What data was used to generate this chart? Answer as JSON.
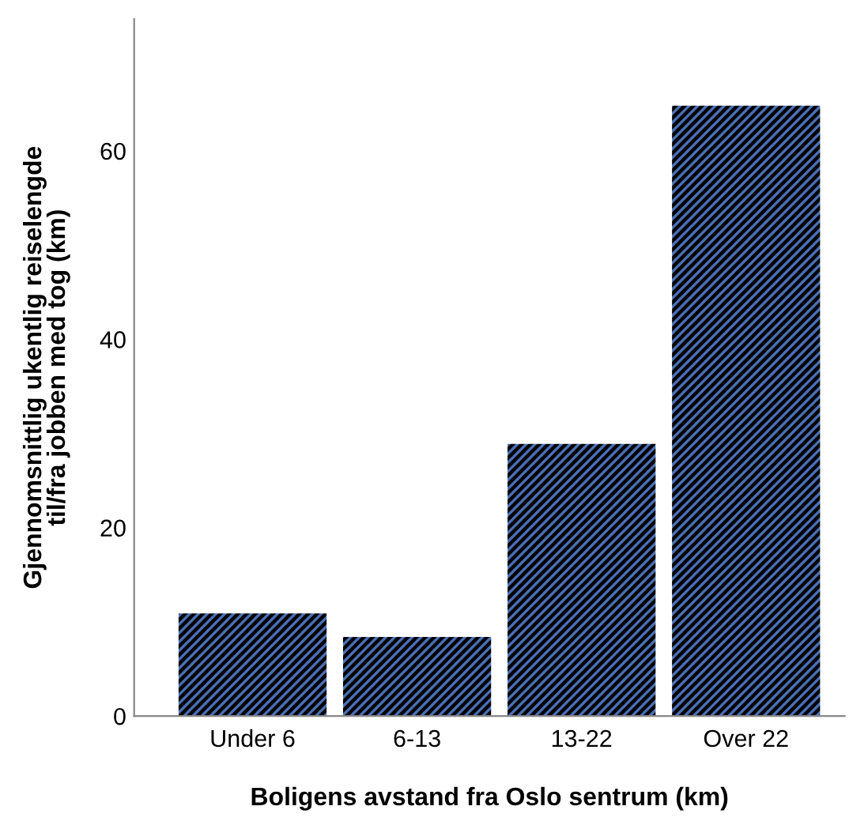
{
  "chart_data": {
    "type": "bar",
    "xlabel": "Boligens avstand fra Oslo sentrum (km)",
    "ylabel": "Gjennomsnittlig ukentlig reiselengde\ntil/fra jobben med tog (km)",
    "categories": [
      "Under 6",
      "6-13",
      "13-22",
      "Over 22"
    ],
    "values": [
      10.9,
      8.4,
      28.9,
      64.8
    ],
    "color": "#4a6fb5",
    "ylim": [
      0,
      74
    ],
    "yticks": [
      0,
      20,
      40,
      60
    ],
    "grid": false,
    "legend": false
  }
}
